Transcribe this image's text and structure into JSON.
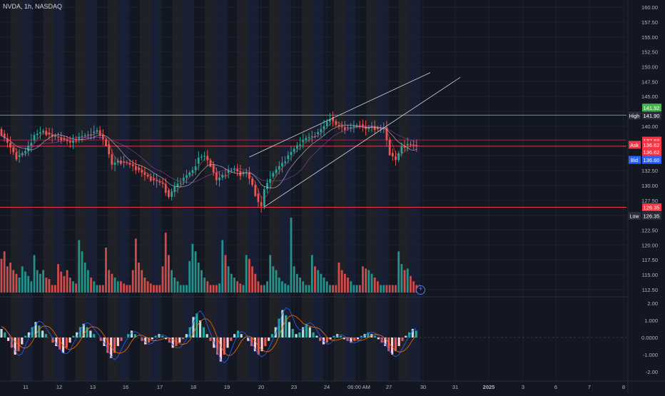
{
  "header": {
    "symbol": "NVDA, 1h, NASDAQ"
  },
  "colors": {
    "background": "#131722",
    "up": "#26a69a",
    "down": "#ef5350",
    "high_line": "#4caf50",
    "level_line": "#f23645",
    "ask": "#f23645",
    "bid": "#2962ff",
    "session_pre": "#2b2a2a",
    "session_post": "#1e2744",
    "trend": "#d1d4dc"
  },
  "axis_labels": {
    "high_text": "High",
    "low_text": "Low",
    "ask_text": "Ask",
    "bid_text": "Bid",
    "badge_green": "141.92",
    "high_value": "141.90",
    "badge_red1": "137.68",
    "ask_value": "136.62",
    "badge_red2": "136.62",
    "bid_value": "136.60",
    "badge_red3": "126.35",
    "low_value": "126.35"
  },
  "chart_data": [
    {
      "type": "candlestick",
      "title": "NVDA, 1h, NASDAQ",
      "x_ticks": [
        "11",
        "12",
        "13",
        "16",
        "17",
        "18",
        "19",
        "20",
        "23",
        "24",
        "06:00 AM",
        "27",
        "30",
        "31",
        "2025",
        "3",
        "6",
        "7",
        "8"
      ],
      "y_ticks": [
        160.0,
        157.5,
        155.0,
        152.5,
        150.0,
        147.5,
        145.0,
        142.5,
        140.0,
        137.5,
        135.0,
        132.5,
        130.0,
        127.5,
        125.0,
        122.5,
        120.0,
        117.5,
        115.0,
        112.5
      ],
      "ylim": [
        112.0,
        160.5
      ],
      "annotations": {
        "high": 141.9,
        "low": 126.35,
        "ask": 136.62,
        "bid": 136.6
      },
      "price_levels": [
        141.92,
        137.68,
        136.62,
        126.35
      ],
      "series": [
        {
          "name": "price",
          "points": [
            [
              0,
              139.5
            ],
            [
              3,
              137.2
            ],
            [
              6,
              134.8
            ],
            [
              9,
              135.8
            ],
            [
              12,
              138.5
            ],
            [
              15,
              139.2
            ],
            [
              18,
              138.3
            ],
            [
              21,
              138.0
            ],
            [
              24,
              137.2
            ],
            [
              27,
              138.2
            ],
            [
              30,
              138.6
            ],
            [
              33,
              139.3
            ],
            [
              36,
              137.0
            ],
            [
              38,
              133.5
            ],
            [
              40,
              134.2
            ],
            [
              43,
              133.8
            ],
            [
              46,
              133.0
            ],
            [
              49,
              131.8
            ],
            [
              52,
              130.9
            ],
            [
              55,
              130.3
            ],
            [
              57,
              128.1
            ],
            [
              59,
              129.8
            ],
            [
              62,
              131.3
            ],
            [
              65,
              132.6
            ],
            [
              67,
              134.7
            ],
            [
              69,
              135.0
            ],
            [
              71,
              133.5
            ],
            [
              73,
              130.9
            ],
            [
              75,
              131.8
            ],
            [
              77,
              132.5
            ],
            [
              79,
              132.8
            ],
            [
              81,
              132.0
            ],
            [
              83,
              132.2
            ],
            [
              85,
              130.1
            ],
            [
              87,
              127.2
            ],
            [
              88,
              126.5
            ],
            [
              89,
              129.4
            ],
            [
              91,
              131.5
            ],
            [
              93,
              132.7
            ],
            [
              95,
              133.8
            ],
            [
              97,
              135.1
            ],
            [
              99,
              136.2
            ],
            [
              101,
              137.3
            ],
            [
              103,
              138.0
            ],
            [
              105,
              138.3
            ],
            [
              107,
              139.0
            ],
            [
              109,
              140.0
            ],
            [
              111,
              141.5
            ],
            [
              113,
              140.2
            ],
            [
              115,
              139.8
            ],
            [
              117,
              139.7
            ],
            [
              119,
              140.0
            ],
            [
              121,
              140.3
            ],
            [
              123,
              139.5
            ],
            [
              125,
              140.0
            ],
            [
              127,
              139.5
            ],
            [
              129,
              139.8
            ],
            [
              131,
              135.5
            ],
            [
              133,
              134.3
            ],
            [
              135,
              136.6
            ],
            [
              137,
              137.0
            ],
            [
              139,
              136.8
            ],
            [
              140,
              136.61
            ]
          ]
        },
        {
          "name": "volume",
          "values": [
            0.45,
            0.55,
            0.35,
            0.4,
            0.3,
            0.25,
            0.2,
            0.35,
            0.28,
            0.22,
            0.15,
            0.5,
            0.3,
            0.25,
            0.3,
            0.2,
            0.18,
            0.1,
            0.1,
            0.38,
            0.28,
            0.22,
            0.3,
            0.2,
            0.15,
            0.12,
            0.7,
            0.55,
            0.4,
            0.3,
            0.2,
            0.15,
            0.1,
            0.1,
            0.1,
            0.6,
            0.3,
            0.25,
            0.2,
            0.15,
            0.15,
            0.12,
            0.1,
            0.1,
            0.3,
            0.72,
            0.4,
            0.3,
            0.2,
            0.15,
            0.12,
            0.1,
            0.1,
            0.1,
            0.35,
            0.8,
            0.5,
            0.3,
            0.2,
            0.15,
            0.1,
            0.1,
            0.1,
            0.42,
            0.65,
            0.55,
            0.4,
            0.3,
            0.2,
            0.15,
            0.1,
            0.1,
            0.1,
            0.12,
            0.7,
            0.5,
            0.35,
            0.25,
            0.2,
            0.15,
            0.12,
            0.1,
            0.5,
            0.45,
            0.35,
            0.25,
            0.15,
            0.1,
            0.1,
            0.15,
            0.5,
            0.35,
            0.3,
            0.2,
            0.15,
            0.12,
            0.1,
            1.0,
            0.35,
            0.25,
            0.2,
            0.15,
            0.1,
            0.1,
            0.5,
            0.35,
            0.3,
            0.25,
            0.2,
            0.15,
            0.1,
            0.1,
            0.1,
            0.4,
            0.3,
            0.25,
            0.2,
            0.15,
            0.1,
            0.1,
            0.1,
            0.35,
            0.32,
            0.3,
            0.25,
            0.2,
            0.15,
            0.1,
            0.1,
            0.1,
            0.1,
            0.1,
            0.1,
            0.55,
            0.38,
            0.3,
            0.32,
            0.22,
            0.15,
            0.1,
            0.1
          ]
        },
        {
          "name": "macd_hist",
          "values": [
            0.5,
            0.3,
            -0.2,
            -0.6,
            -1.0,
            -0.8,
            -0.4,
            0.1,
            0.3,
            0.6,
            0.9,
            0.7,
            0.4,
            0.2,
            0.0,
            -0.3,
            -0.5,
            -0.7,
            -0.9,
            -0.6,
            -0.3,
            0.1,
            0.3,
            0.6,
            0.8,
            0.6,
            0.4,
            0.2,
            0.0,
            -0.2,
            -0.5,
            -0.9,
            -1.2,
            -0.9,
            -0.5,
            -0.2,
            0.0,
            0.2,
            0.4,
            0.2,
            0.0,
            -0.2,
            -0.4,
            -0.3,
            -0.1,
            0.1,
            0.2,
            0.1,
            -0.1,
            -0.3,
            -0.6,
            -0.5,
            -0.3,
            -0.1,
            0.2,
            0.6,
            1.2,
            1.4,
            1.0,
            0.6,
            0.2,
            -0.2,
            -0.6,
            -1.0,
            -1.4,
            -1.0,
            -0.6,
            -0.2,
            0.2,
            0.4,
            0.2,
            0.0,
            -0.2,
            -0.5,
            -0.8,
            -1.0,
            -0.8,
            -0.5,
            -0.2,
            0.2,
            0.6,
            1.1,
            1.6,
            1.3,
            0.9,
            0.5,
            0.2,
            0.3,
            0.6,
            0.8,
            0.6,
            0.3,
            0.1,
            -0.2,
            -0.4,
            -0.3,
            -0.1,
            0.1,
            0.2,
            0.1,
            -0.1,
            -0.2,
            -0.3,
            -0.2,
            -0.1,
            0.1,
            0.2,
            0.3,
            0.2,
            0.1,
            -0.1,
            -0.3,
            -0.5,
            -0.8,
            -1.0,
            -0.8,
            -0.5,
            -0.2,
            0.1,
            0.3,
            0.5,
            0.4
          ]
        }
      ]
    }
  ]
}
